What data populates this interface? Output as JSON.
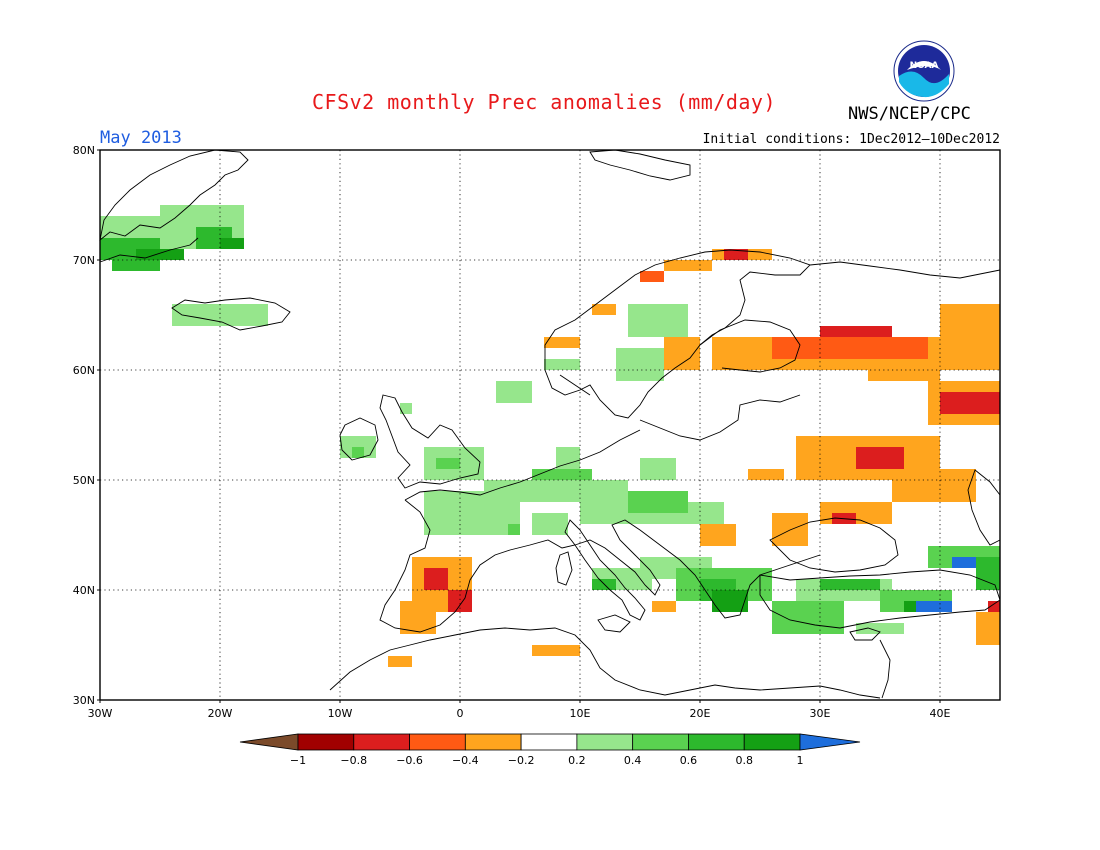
{
  "header": {
    "title": "CFSv2 monthly Prec anomalies (mm/day)",
    "month": "May 2013",
    "initial_conditions": "Initial conditions: 1Dec2012–10Dec2012",
    "agency": "NWS/NCEP/CPC",
    "logo_text": "NOAA"
  },
  "map": {
    "projection": "equirectangular",
    "lon_range": [
      -30,
      45
    ],
    "lat_range": [
      30,
      80
    ],
    "lat_ticks": [
      "80N",
      "70N",
      "60N",
      "50N",
      "40N",
      "30N"
    ],
    "lon_ticks": [
      "30W",
      "20W",
      "10W",
      "0",
      "10E",
      "20E",
      "30E",
      "40E"
    ],
    "grid": "dotted"
  },
  "colorbar": {
    "labels": [
      "−1",
      "−0.8",
      "−0.6",
      "−0.4",
      "−0.2",
      "0.2",
      "0.4",
      "0.6",
      "0.8",
      "1"
    ],
    "colors": [
      "#7b4a2a",
      "#a10000",
      "#dc1e1e",
      "#ff5a14",
      "#ffa51e",
      "#ffffff",
      "#96e68c",
      "#5ad250",
      "#2db92d",
      "#14a014",
      "#1e6edc"
    ]
  },
  "anomaly_colors": {
    "pos_02_04": "#96e68c",
    "pos_04_06": "#5ad250",
    "pos_06_08": "#2db92d",
    "pos_08_1": "#14a014",
    "pos_gt1": "#1e6edc",
    "neg_02_04": "#ffa51e",
    "neg_04_06": "#ff5a14",
    "neg_06_08": "#dc1e1e"
  }
}
